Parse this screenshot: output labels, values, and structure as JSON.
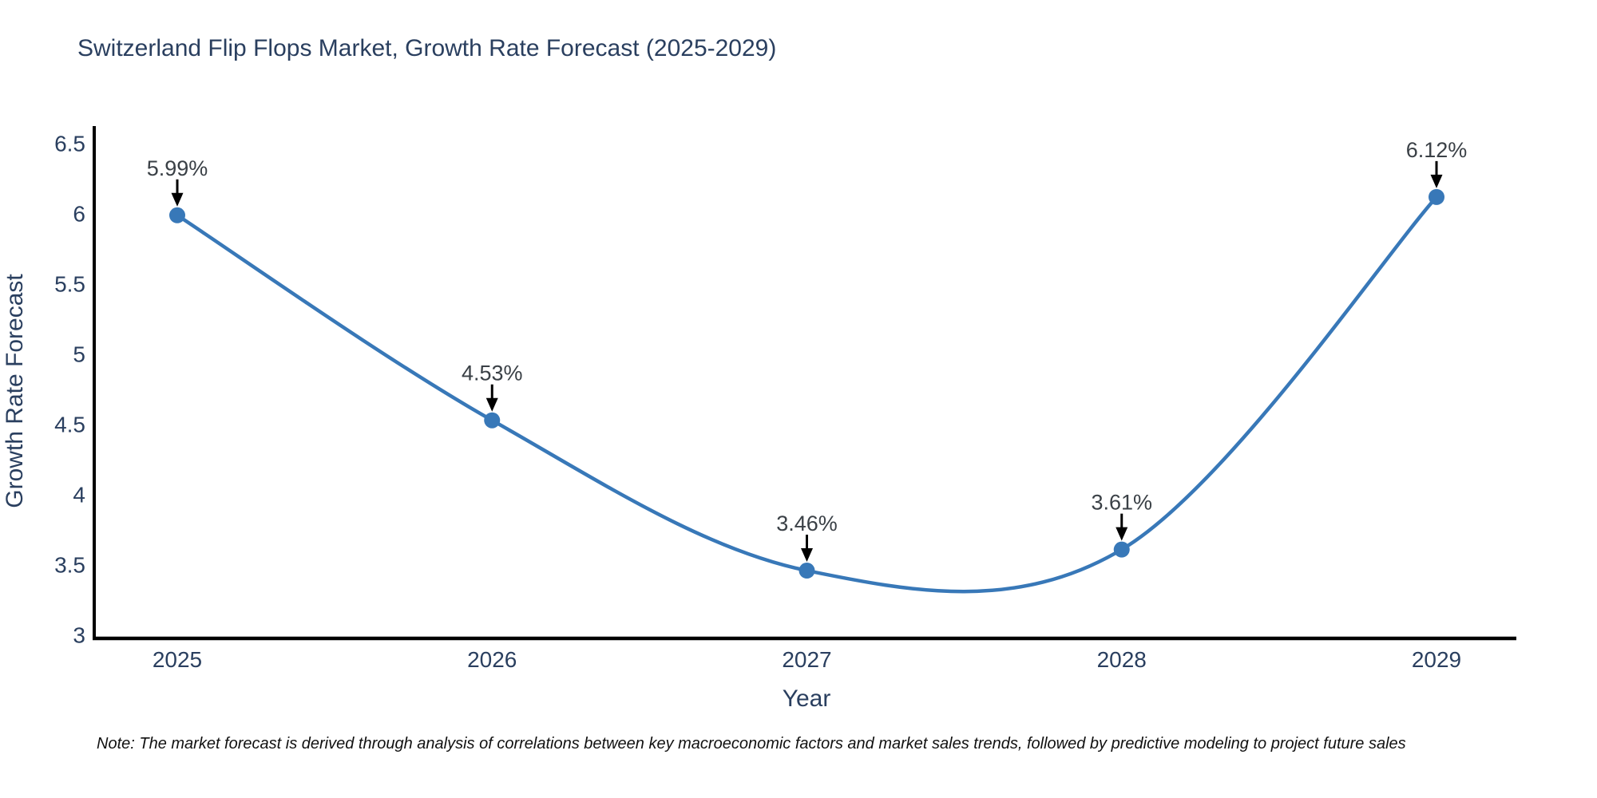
{
  "title": "Switzerland Flip Flops Market, Growth Rate Forecast (2025-2029)",
  "note": "Note: The market forecast is derived through analysis of correlations between key macroeconomic factors and market sales trends, followed by predictive modeling to project future sales",
  "colors": {
    "line": "#3878b8",
    "marker": "#3878b8",
    "axis": "#000000",
    "tick_text": "#2a3f5f",
    "axis_title_text": "#2a3f5f",
    "annotation_text": "#3a4046",
    "arrow": "#000000",
    "title_text": "#2a3f5f",
    "background": "#ffffff"
  },
  "chart_data": {
    "type": "line",
    "line_shape": "spline",
    "title": "Switzerland Flip Flops Market, Growth Rate Forecast (2025-2029)",
    "x": [
      2025,
      2026,
      2027,
      2028,
      2029
    ],
    "y": [
      5.99,
      4.53,
      3.46,
      3.61,
      6.12
    ],
    "point_labels": [
      "5.99%",
      "4.53%",
      "3.46%",
      "3.61%",
      "6.12%"
    ],
    "xlabel": "Year",
    "ylabel": "Growth Rate Forecast",
    "xticks": [
      "2025",
      "2026",
      "2027",
      "2028",
      "2029"
    ],
    "yticks": [
      "3",
      "3.5",
      "4",
      "4.5",
      "5",
      "5.5",
      "6",
      "6.5"
    ],
    "ytick_values": [
      3,
      3.5,
      4,
      4.5,
      5,
      5.5,
      6,
      6.5
    ],
    "xlim": [
      2024.74,
      2029.32
    ],
    "ylim": [
      2.98,
      6.63
    ],
    "grid": false,
    "legend_position": "none",
    "annotations_have_arrows": true
  }
}
